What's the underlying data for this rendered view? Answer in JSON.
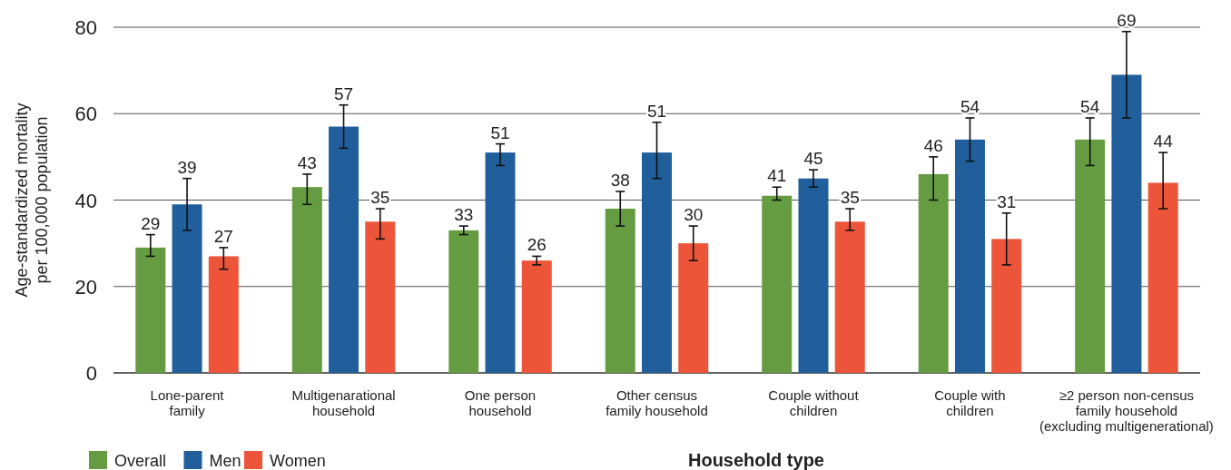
{
  "chart_data": {
    "type": "bar",
    "xlabel": "Household type",
    "ylabel": "Age-standardized mortality\nper 100,000 population",
    "categories": [
      "Lone-parent\nfamily",
      "Multigenarational\nhousehold",
      "One person\nhousehold",
      "Other census\nfamily household",
      "Couple without\nchildren",
      "Couple with\nchildren",
      "≥2 person non-census\nfamily household\n(excluding multigenerational)"
    ],
    "series": [
      {
        "name": "Overall",
        "color": "#669c41",
        "values": [
          29,
          43,
          33,
          38,
          41,
          46,
          54
        ],
        "errors": [
          [
            27,
            32
          ],
          [
            39,
            46
          ],
          [
            32,
            34
          ],
          [
            34,
            42
          ],
          [
            40,
            43
          ],
          [
            40,
            50
          ],
          [
            48,
            59
          ]
        ]
      },
      {
        "name": "Men",
        "color": "#215f9c",
        "values": [
          39,
          57,
          51,
          51,
          45,
          54,
          69
        ],
        "errors": [
          [
            33,
            45
          ],
          [
            52,
            62
          ],
          [
            48,
            53
          ],
          [
            45,
            58
          ],
          [
            43,
            47
          ],
          [
            49,
            59
          ],
          [
            59,
            79
          ]
        ]
      },
      {
        "name": "Women",
        "color": "#ec553a",
        "values": [
          27,
          35,
          26,
          30,
          35,
          31,
          44
        ],
        "errors": [
          [
            24,
            29
          ],
          [
            31,
            38
          ],
          [
            25,
            27
          ],
          [
            26,
            34
          ],
          [
            33,
            38
          ],
          [
            25,
            37
          ],
          [
            38,
            51
          ]
        ]
      }
    ],
    "ylim": [
      0,
      80
    ],
    "yticks": [
      0,
      20,
      40,
      60,
      80
    ],
    "grid": "y",
    "legend": "bottom left",
    "data_labels": true
  }
}
